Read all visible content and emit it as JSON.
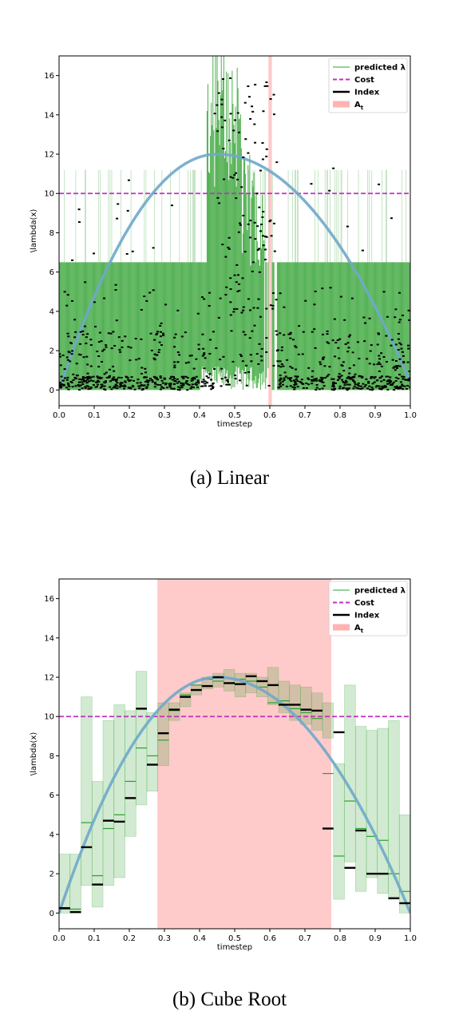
{
  "chart_data": [
    {
      "id": "a",
      "type": "scatter",
      "caption": "(a) Linear",
      "xlabel": "timestep",
      "ylabel": "\\lambda(x)",
      "xlim": [
        0.0,
        1.0
      ],
      "ylim": [
        -0.8,
        17.0
      ],
      "xticks": [
        "0.0",
        "0.1",
        "0.2",
        "0.3",
        "0.4",
        "0.5",
        "0.6",
        "0.7",
        "0.8",
        "0.9",
        "1.0"
      ],
      "yticks": [
        "0",
        "2",
        "4",
        "6",
        "8",
        "10",
        "12",
        "14",
        "16"
      ],
      "legend_position": "top-right",
      "legend": [
        {
          "label": "predicted λ",
          "kind": "thin-line",
          "color": "#2ca02c"
        },
        {
          "label": "Cost",
          "kind": "dashed-line",
          "color": "#c030c0"
        },
        {
          "label": "Index",
          "kind": "thick-line",
          "color": "#000000"
        },
        {
          "label": "A_t",
          "kind": "patch",
          "color": "#ffb3b3"
        }
      ],
      "cost_value": 10.0,
      "curve": {
        "peak_x": 0.45,
        "peak_y": 12.0,
        "start_y": 0.0,
        "end_y": 0.4,
        "color": "#6fa8c9"
      },
      "accepted_region": [
        [
          0.596,
          0.606
        ]
      ],
      "predicted_band": {
        "description": "dense green intervals, mostly from 0 to about 6.5 on both sides, with spikes up to 11.2 and a dense spike region 0.42–0.52 reaching above 17",
        "lower": 0.0,
        "upper_typical": 6.5,
        "upper_spike": 11.2
      },
      "index_points_summary": "about 1000 scattered black marks, dense near 0–3, spread up to about 16 in the central region 0.45–0.6"
    },
    {
      "id": "b",
      "type": "bar",
      "caption": "(b) Cube Root",
      "xlabel": "timestep",
      "ylabel": "\\lambda(x)",
      "xlim": [
        0.0,
        1.0
      ],
      "ylim": [
        -0.8,
        17.0
      ],
      "xticks": [
        "0.0",
        "0.1",
        "0.2",
        "0.3",
        "0.4",
        "0.5",
        "0.6",
        "0.7",
        "0.8",
        "0.9",
        "1.0"
      ],
      "yticks": [
        "0",
        "2",
        "4",
        "6",
        "8",
        "10",
        "12",
        "14",
        "16"
      ],
      "legend_position": "top-right",
      "legend": [
        {
          "label": "predicted λ",
          "kind": "thin-line",
          "color": "#2ca02c"
        },
        {
          "label": "Cost",
          "kind": "dashed-line",
          "color": "#c030c0"
        },
        {
          "label": "Index",
          "kind": "thick-line",
          "color": "#000000"
        },
        {
          "label": "A_t",
          "kind": "patch",
          "color": "#ffb3b3"
        }
      ],
      "cost_value": 10.0,
      "curve": {
        "peak_x": 0.45,
        "peak_y": 12.0,
        "start_y": 0.0,
        "end_y": 0.0,
        "color": "#6fa8c9"
      },
      "accepted_region": [
        [
          0.28,
          0.775
        ]
      ],
      "bin_width": 0.03125,
      "bins": {
        "x_start": [
          0.0,
          0.03125,
          0.0625,
          0.09375,
          0.125,
          0.15625,
          0.1875,
          0.21875,
          0.25,
          0.28125,
          0.3125,
          0.34375,
          0.375,
          0.40625,
          0.4375,
          0.46875,
          0.5,
          0.53125,
          0.5625,
          0.59375,
          0.625,
          0.65625,
          0.6875,
          0.71875,
          0.75,
          0.78125,
          0.8125,
          0.84375,
          0.875,
          0.90625,
          0.9375,
          0.96875
        ],
        "lower": [
          0.0,
          0.0,
          1.4,
          0.3,
          1.4,
          1.8,
          3.9,
          5.5,
          6.2,
          7.5,
          9.8,
          10.5,
          11.1,
          11.4,
          11.5,
          11.3,
          11.0,
          11.2,
          11.0,
          10.6,
          10.2,
          9.8,
          9.6,
          9.3,
          8.9,
          0.7,
          2.6,
          1.1,
          1.8,
          1.0,
          0.8,
          0.0
        ],
        "upper": [
          3.0,
          3.0,
          11.0,
          6.7,
          9.8,
          10.6,
          10.3,
          12.3,
          10.2,
          10.7,
          10.7,
          11.2,
          11.6,
          12.0,
          12.2,
          12.4,
          12.2,
          12.2,
          12.0,
          12.5,
          11.8,
          11.6,
          11.5,
          11.2,
          10.7,
          7.6,
          11.6,
          9.5,
          9.3,
          9.4,
          9.8,
          5.0
        ],
        "predicted": [
          0.2,
          0.2,
          4.6,
          1.9,
          4.3,
          5.0,
          6.7,
          8.4,
          8.0,
          8.8,
          10.3,
          11.1,
          11.6,
          11.9,
          11.8,
          11.7,
          11.9,
          11.8,
          11.5,
          10.7,
          10.8,
          10.4,
          10.2,
          9.9,
          7.1,
          2.9,
          5.7,
          4.3,
          3.9,
          3.7,
          2.0,
          1.1
        ],
        "index": [
          0.25,
          0.05,
          3.35,
          1.45,
          4.7,
          4.65,
          5.85,
          10.4,
          7.55,
          9.15,
          10.35,
          11.0,
          11.35,
          11.55,
          12.0,
          11.7,
          11.65,
          12.05,
          11.8,
          11.6,
          10.6,
          10.6,
          10.35,
          10.3,
          4.3,
          9.2,
          2.3,
          4.2,
          2.0,
          2.0,
          0.75,
          0.5
        ]
      }
    }
  ]
}
